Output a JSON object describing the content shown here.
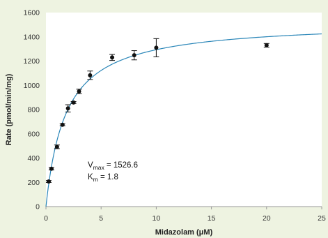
{
  "colors": {
    "background": "#eef3e1",
    "plot_area": "#ffffff",
    "fit_curve": "#2a86b8",
    "points": "#111111",
    "axis": "#9a9a9a"
  },
  "chart_data": {
    "type": "scatter",
    "title": "",
    "xlabel": "Midazolam (μM)",
    "ylabel": "Rate (pmol/min/mg)",
    "xlim": [
      0,
      25
    ],
    "ylim": [
      0,
      1600
    ],
    "xticks": [
      0,
      5,
      10,
      15,
      20,
      25
    ],
    "yticks": [
      0,
      200,
      400,
      600,
      800,
      1000,
      1200,
      1400,
      1600
    ],
    "grid": false,
    "points": [
      {
        "x": 0.25,
        "y": 207,
        "err": 8
      },
      {
        "x": 0.5,
        "y": 312,
        "err": 10
      },
      {
        "x": 1.0,
        "y": 493,
        "err": 15
      },
      {
        "x": 1.5,
        "y": 675,
        "err": 8
      },
      {
        "x": 2.0,
        "y": 810,
        "err": 30
      },
      {
        "x": 2.5,
        "y": 858,
        "err": 8
      },
      {
        "x": 3.0,
        "y": 950,
        "err": 18
      },
      {
        "x": 4.0,
        "y": 1083,
        "err": 35
      },
      {
        "x": 6.0,
        "y": 1230,
        "err": 25
      },
      {
        "x": 8.0,
        "y": 1248,
        "err": 38
      },
      {
        "x": 10.0,
        "y": 1310,
        "err": 75
      },
      {
        "x": 20.0,
        "y": 1330,
        "err": 15
      }
    ],
    "fit": {
      "model": "michaelis-menten",
      "vmax": 1526.6,
      "km": 1.8
    },
    "annotation": {
      "vmax_symbol": "V",
      "vmax_subscript": "max",
      "vmax_value": " = 1526.6",
      "km_symbol": "K",
      "km_subscript": "m",
      "km_value": " = 1.8"
    }
  }
}
